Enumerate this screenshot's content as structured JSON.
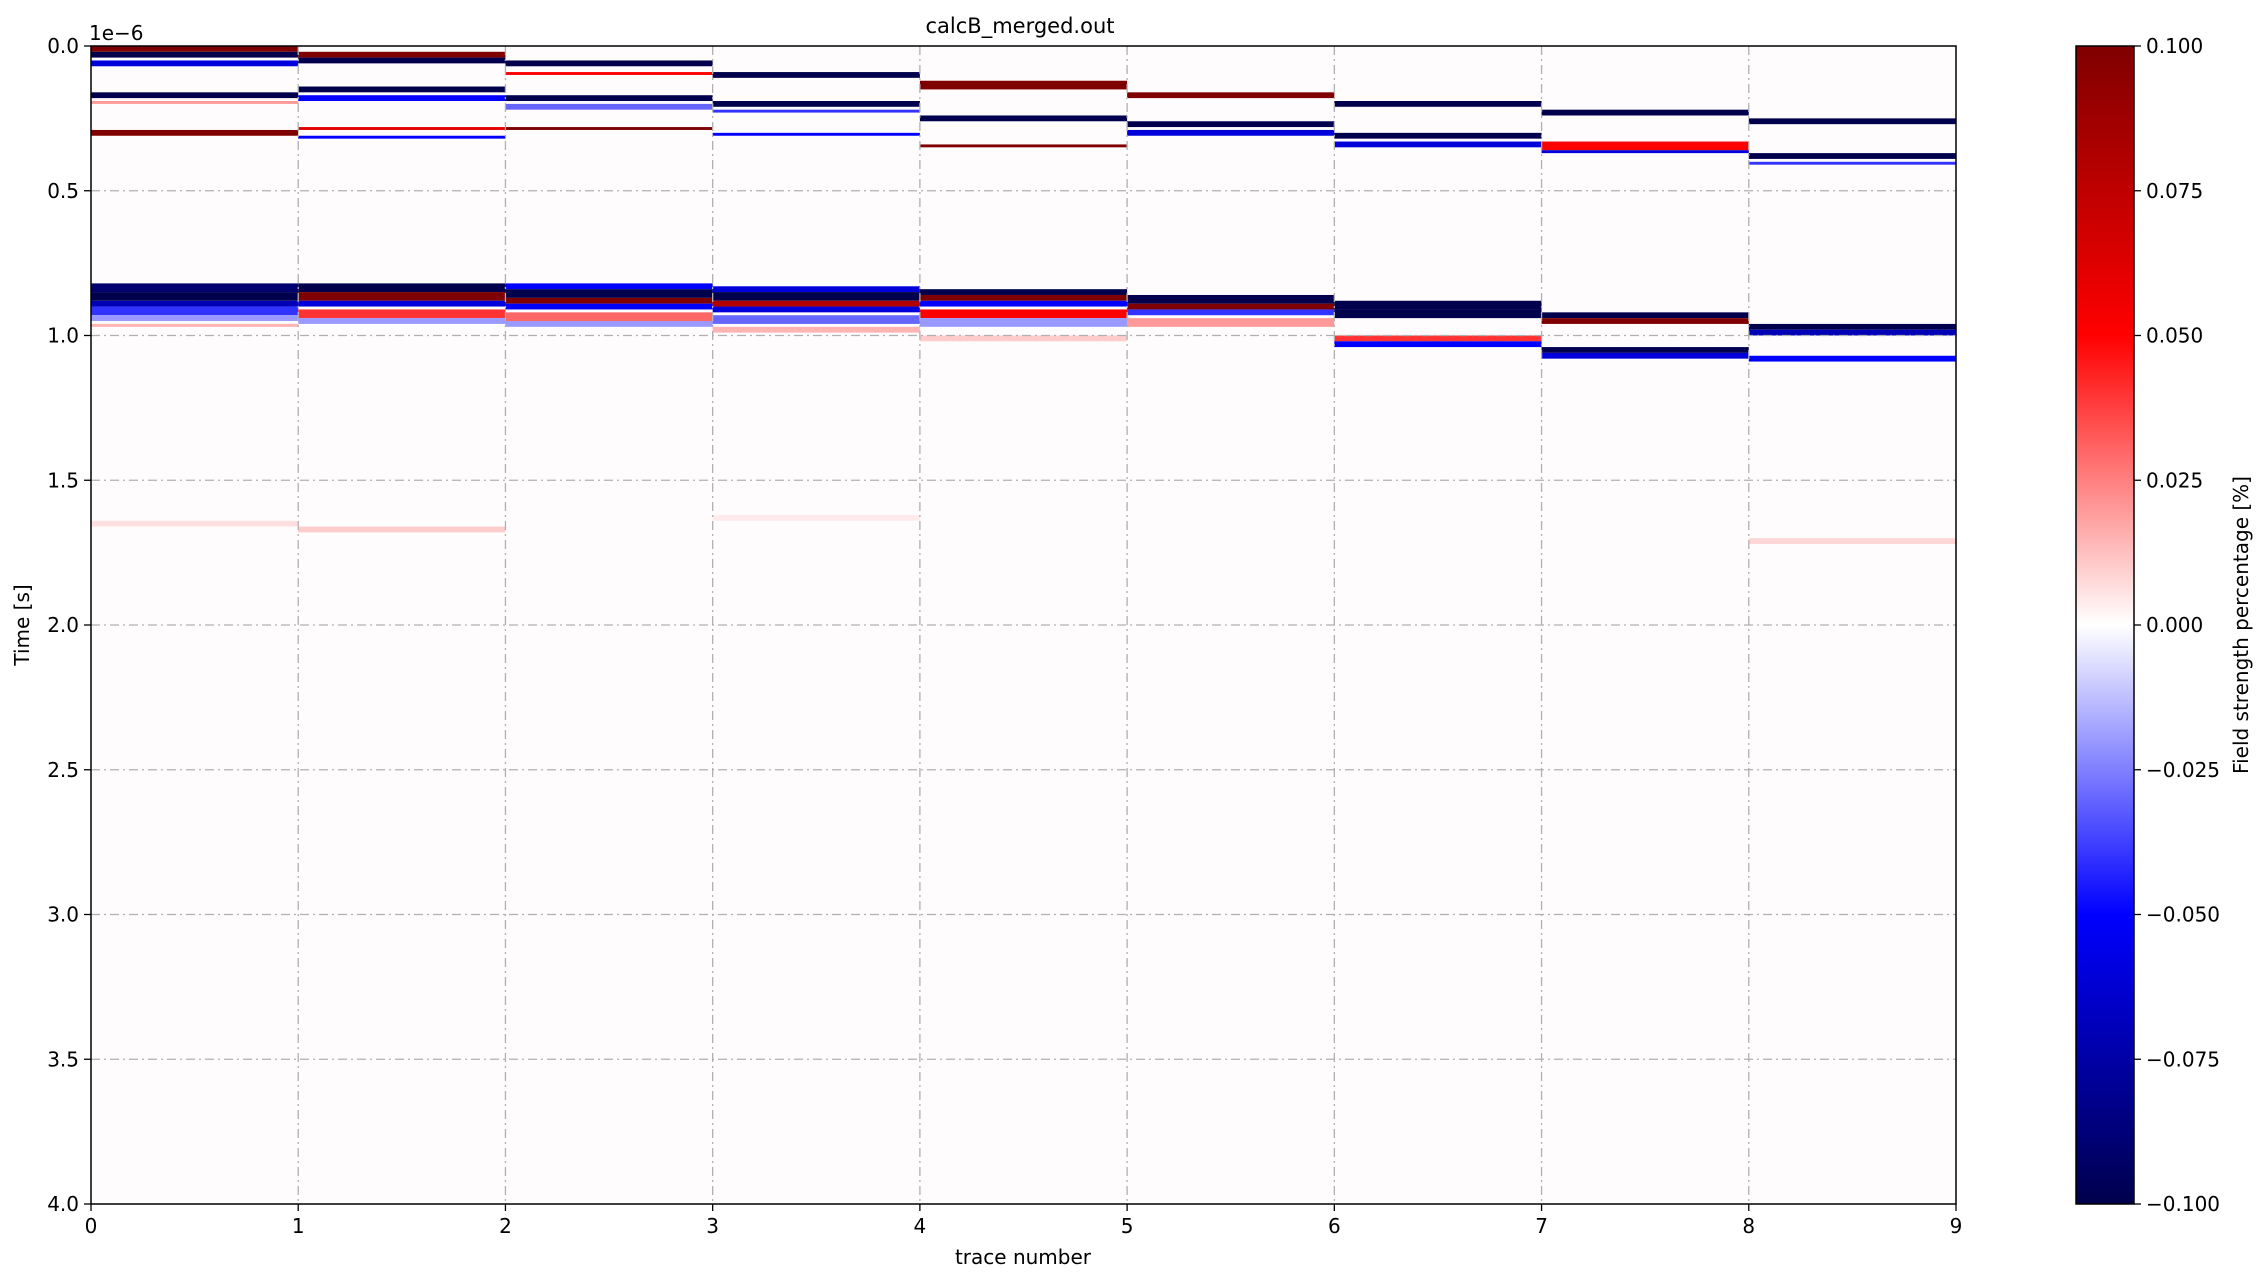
{
  "chart_data": {
    "type": "heatmap",
    "title": "calcB_merged.out",
    "xlabel": "trace number",
    "ylabel": "Time [s]",
    "y_offset_label": "1e−6",
    "xlim": [
      0,
      9
    ],
    "ylim": [
      4e-06,
      0.0
    ],
    "y_inverted": true,
    "x_ticks": [
      0,
      1,
      2,
      3,
      4,
      5,
      6,
      7,
      8,
      9
    ],
    "x_tick_labels": [
      "0",
      "1",
      "2",
      "3",
      "4",
      "5",
      "6",
      "7",
      "8",
      "9"
    ],
    "y_ticks": [
      0.0,
      0.5,
      1.0,
      1.5,
      2.0,
      2.5,
      3.0,
      3.5,
      4.0
    ],
    "y_tick_labels": [
      "0.0",
      "0.5",
      "1.0",
      "1.5",
      "2.0",
      "2.5",
      "3.0",
      "3.5",
      "4.0"
    ],
    "y_tick_scale": 1e-06,
    "grid": true,
    "grid_style": "dash-dot",
    "colormap": "seismic",
    "colorbar": {
      "label": "Field strength percentage [%]",
      "vmin": -0.1,
      "vmax": 0.1,
      "ticks": [
        0.1,
        0.075,
        0.05,
        0.025,
        0.0,
        -0.025,
        -0.05,
        -0.075,
        -0.1
      ],
      "tick_labels": [
        "0.100",
        "0.075",
        "0.050",
        "0.025",
        "0.000",
        "−0.025",
        "−0.050",
        "−0.075",
        "−0.100"
      ]
    },
    "traces": [
      {
        "trace": 0,
        "bands": [
          {
            "t": 0.0,
            "dt": 2e-08,
            "v": 0.1
          },
          {
            "t": 2e-08,
            "dt": 2e-08,
            "v": -0.1
          },
          {
            "t": 5e-08,
            "dt": 2e-08,
            "v": -0.06
          },
          {
            "t": 1.6e-07,
            "dt": 2e-08,
            "v": -0.1
          },
          {
            "t": 1.9e-07,
            "dt": 1e-08,
            "v": 0.02
          },
          {
            "t": 2.9e-07,
            "dt": 2e-08,
            "v": 0.1
          },
          {
            "t": 8.2e-07,
            "dt": 3e-08,
            "v": -0.09
          },
          {
            "t": 8.5e-07,
            "dt": 3e-08,
            "v": -0.1
          },
          {
            "t": 8.8e-07,
            "dt": 2e-08,
            "v": -0.07
          },
          {
            "t": 9e-07,
            "dt": 3e-08,
            "v": -0.04
          },
          {
            "t": 9.3e-07,
            "dt": 2e-08,
            "v": -0.02
          },
          {
            "t": 9.6e-07,
            "dt": 1e-08,
            "v": 0.015
          },
          {
            "t": 1.64e-06,
            "dt": 2e-08,
            "v": 0.006
          }
        ]
      },
      {
        "trace": 1,
        "bands": [
          {
            "t": 2e-08,
            "dt": 2e-08,
            "v": 0.1
          },
          {
            "t": 4e-08,
            "dt": 2e-08,
            "v": -0.1
          },
          {
            "t": 1.4e-07,
            "dt": 2e-08,
            "v": -0.1
          },
          {
            "t": 1.7e-07,
            "dt": 2e-08,
            "v": -0.05
          },
          {
            "t": 2.8e-07,
            "dt": 1e-08,
            "v": 0.06
          },
          {
            "t": 3.1e-07,
            "dt": 1e-08,
            "v": -0.05
          },
          {
            "t": 8.2e-07,
            "dt": 3e-08,
            "v": -0.1
          },
          {
            "t": 8.5e-07,
            "dt": 3e-08,
            "v": 0.1
          },
          {
            "t": 8.8e-07,
            "dt": 2e-08,
            "v": -0.06
          },
          {
            "t": 9.1e-07,
            "dt": 3e-08,
            "v": 0.04
          },
          {
            "t": 9.4e-07,
            "dt": 2e-08,
            "v": -0.02
          },
          {
            "t": 1.66e-06,
            "dt": 2e-08,
            "v": 0.01
          }
        ]
      },
      {
        "trace": 2,
        "bands": [
          {
            "t": 5e-08,
            "dt": 2e-08,
            "v": -0.1
          },
          {
            "t": 9e-08,
            "dt": 1e-08,
            "v": 0.05
          },
          {
            "t": 1.7e-07,
            "dt": 2e-08,
            "v": -0.1
          },
          {
            "t": 2e-07,
            "dt": 2e-08,
            "v": -0.03
          },
          {
            "t": 2.8e-07,
            "dt": 1e-08,
            "v": 0.1
          },
          {
            "t": 8.2e-07,
            "dt": 2e-08,
            "v": -0.05
          },
          {
            "t": 8.4e-07,
            "dt": 3e-08,
            "v": -0.1
          },
          {
            "t": 8.7e-07,
            "dt": 2e-08,
            "v": 0.1
          },
          {
            "t": 8.9e-07,
            "dt": 2e-08,
            "v": -0.05
          },
          {
            "t": 9.2e-07,
            "dt": 3e-08,
            "v": 0.03
          },
          {
            "t": 9.5e-07,
            "dt": 2e-08,
            "v": -0.02
          }
        ]
      },
      {
        "trace": 3,
        "bands": [
          {
            "t": 9e-08,
            "dt": 2e-08,
            "v": -0.1
          },
          {
            "t": 1.9e-07,
            "dt": 2e-08,
            "v": -0.1
          },
          {
            "t": 2.2e-07,
            "dt": 1e-08,
            "v": -0.04
          },
          {
            "t": 3e-07,
            "dt": 1e-08,
            "v": -0.05
          },
          {
            "t": 8.3e-07,
            "dt": 2e-08,
            "v": -0.06
          },
          {
            "t": 8.5e-07,
            "dt": 3e-08,
            "v": -0.1
          },
          {
            "t": 8.8e-07,
            "dt": 2e-08,
            "v": 0.08
          },
          {
            "t": 9e-07,
            "dt": 2e-08,
            "v": -0.06
          },
          {
            "t": 9.3e-07,
            "dt": 3e-08,
            "v": -0.03
          },
          {
            "t": 9.7e-07,
            "dt": 2e-08,
            "v": 0.015
          },
          {
            "t": 1.62e-06,
            "dt": 2e-08,
            "v": 0.004
          }
        ]
      },
      {
        "trace": 4,
        "bands": [
          {
            "t": 1.2e-07,
            "dt": 3e-08,
            "v": 0.1
          },
          {
            "t": 2.4e-07,
            "dt": 2e-08,
            "v": -0.1
          },
          {
            "t": 3.4e-07,
            "dt": 1e-08,
            "v": 0.1
          },
          {
            "t": 8.4e-07,
            "dt": 2e-08,
            "v": -0.1
          },
          {
            "t": 8.6e-07,
            "dt": 2e-08,
            "v": 0.1
          },
          {
            "t": 8.8e-07,
            "dt": 2e-08,
            "v": -0.05
          },
          {
            "t": 9.1e-07,
            "dt": 3e-08,
            "v": 0.05
          },
          {
            "t": 9.4e-07,
            "dt": 3e-08,
            "v": -0.02
          },
          {
            "t": 1e-06,
            "dt": 2e-08,
            "v": 0.01
          }
        ]
      },
      {
        "trace": 5,
        "bands": [
          {
            "t": 1.6e-07,
            "dt": 2e-08,
            "v": 0.1
          },
          {
            "t": 2.6e-07,
            "dt": 2e-08,
            "v": -0.1
          },
          {
            "t": 2.9e-07,
            "dt": 2e-08,
            "v": -0.06
          },
          {
            "t": 8.6e-07,
            "dt": 3e-08,
            "v": -0.1
          },
          {
            "t": 8.9e-07,
            "dt": 2e-08,
            "v": 0.1
          },
          {
            "t": 9.1e-07,
            "dt": 2e-08,
            "v": -0.04
          },
          {
            "t": 9.4e-07,
            "dt": 3e-08,
            "v": 0.02
          }
        ]
      },
      {
        "trace": 6,
        "bands": [
          {
            "t": 1.9e-07,
            "dt": 2e-08,
            "v": -0.1
          },
          {
            "t": 3e-07,
            "dt": 2e-08,
            "v": -0.1
          },
          {
            "t": 3.3e-07,
            "dt": 2e-08,
            "v": -0.06
          },
          {
            "t": 8.8e-07,
            "dt": 3e-08,
            "v": -0.1
          },
          {
            "t": 9.1e-07,
            "dt": 3e-08,
            "v": -0.1
          },
          {
            "t": 1e-06,
            "dt": 2e-08,
            "v": 0.04
          },
          {
            "t": 1.02e-06,
            "dt": 2e-08,
            "v": -0.05
          }
        ]
      },
      {
        "trace": 7,
        "bands": [
          {
            "t": 2.2e-07,
            "dt": 2e-08,
            "v": -0.1
          },
          {
            "t": 3.3e-07,
            "dt": 3e-08,
            "v": 0.05
          },
          {
            "t": 3.6e-07,
            "dt": 1e-08,
            "v": -0.06
          },
          {
            "t": 9.2e-07,
            "dt": 2e-08,
            "v": -0.1
          },
          {
            "t": 9.4e-07,
            "dt": 2e-08,
            "v": 0.1
          },
          {
            "t": 1.04e-06,
            "dt": 2e-08,
            "v": -0.1
          },
          {
            "t": 1.06e-06,
            "dt": 2e-08,
            "v": -0.06
          }
        ]
      },
      {
        "trace": 8,
        "bands": [
          {
            "t": 2.5e-07,
            "dt": 2e-08,
            "v": -0.1
          },
          {
            "t": 3.7e-07,
            "dt": 2e-08,
            "v": -0.1
          },
          {
            "t": 4e-07,
            "dt": 1e-08,
            "v": -0.04
          },
          {
            "t": 9.6e-07,
            "dt": 2e-08,
            "v": -0.1
          },
          {
            "t": 9.8e-07,
            "dt": 2e-08,
            "v": -0.07
          },
          {
            "t": 1.07e-06,
            "dt": 2e-08,
            "v": -0.05
          },
          {
            "t": 1.7e-06,
            "dt": 2e-08,
            "v": 0.008
          }
        ]
      }
    ]
  }
}
